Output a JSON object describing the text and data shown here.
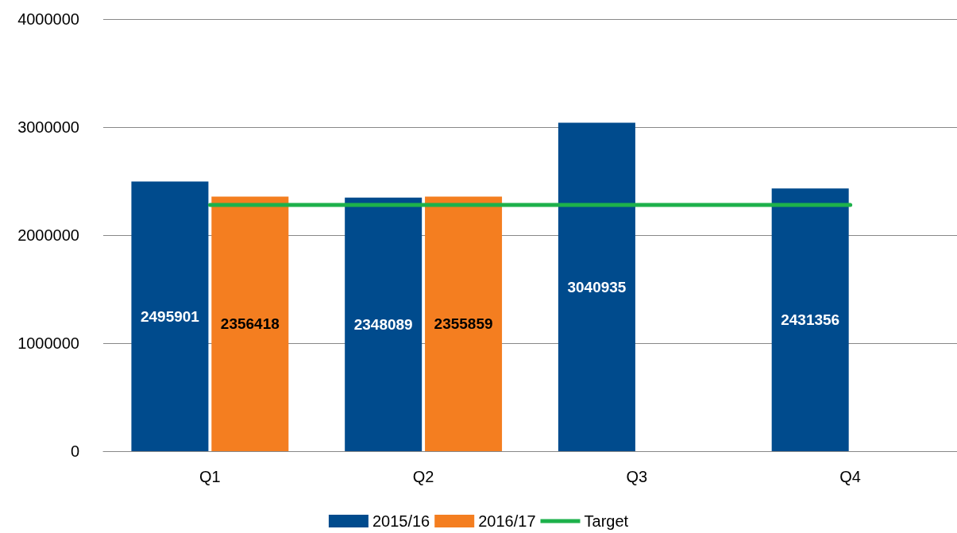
{
  "chart_data": {
    "type": "bar",
    "categories": [
      "Q1",
      "Q2",
      "Q3",
      "Q4"
    ],
    "series": [
      {
        "name": "2015/16",
        "color": "#004b8d",
        "values": [
          2495901,
          2348089,
          3040935,
          2431356
        ],
        "value_labels": [
          "2495901",
          "2348089",
          "3040935",
          "2431356"
        ]
      },
      {
        "name": "2016/17",
        "color": "#f47e20",
        "values": [
          2356418,
          2355859,
          null,
          null
        ],
        "value_labels": [
          "2356418",
          "2355859",
          null,
          null
        ]
      },
      {
        "name": "Target",
        "type": "line",
        "color": "#1db14b",
        "values": [
          2280000,
          2280000,
          2280000,
          2280000
        ]
      }
    ],
    "ylim": [
      0,
      4000000
    ],
    "yticks": [
      0,
      1000000,
      2000000,
      3000000,
      4000000
    ],
    "grid": "y",
    "legend": "bottom",
    "marker": "none"
  }
}
